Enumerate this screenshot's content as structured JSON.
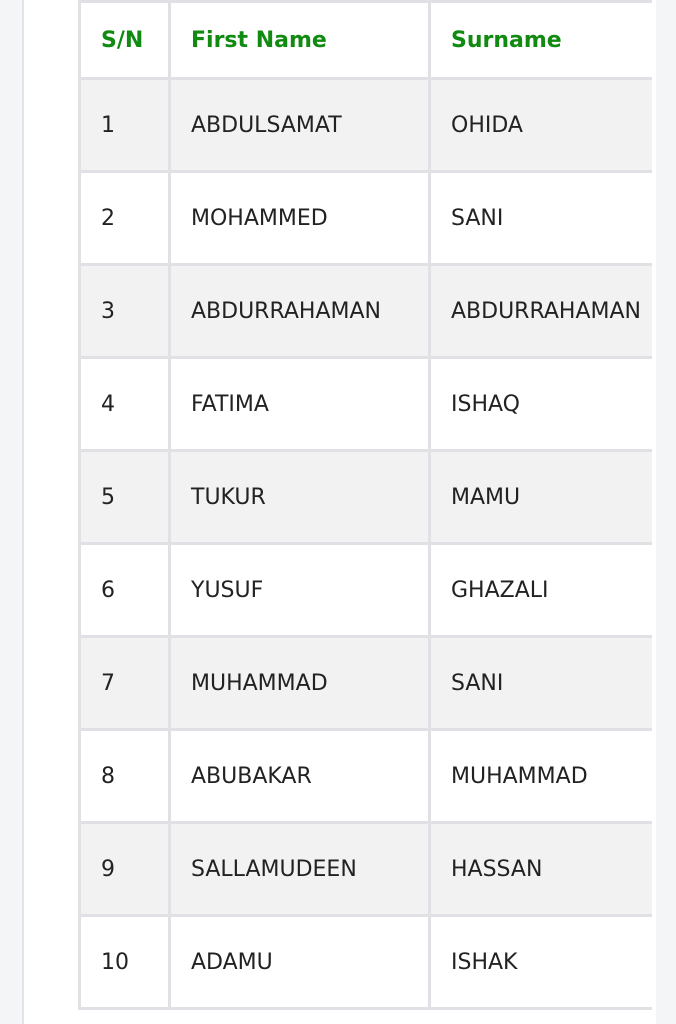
{
  "table": {
    "header": [
      "S/N",
      "First Name",
      "Surname"
    ],
    "rows": [
      [
        1,
        "ABDULSAMAT",
        "OHIDA"
      ],
      [
        2,
        "MOHAMMED",
        "SANI"
      ],
      [
        3,
        "ABDURRAHAMAN",
        "ABDURRAHAMAN"
      ],
      [
        4,
        "FATIMA",
        "ISHAQ"
      ],
      [
        5,
        "TUKUR",
        "MAMU"
      ],
      [
        6,
        "YUSUF",
        "GHAZALI"
      ],
      [
        7,
        "MUHAMMAD",
        "SANI"
      ],
      [
        8,
        "ABUBAKAR",
        "MUHAMMAD"
      ],
      [
        9,
        "SALLAMUDEEN",
        "HASSAN"
      ],
      [
        10,
        "ADAMU",
        "ISHAK"
      ]
    ]
  }
}
